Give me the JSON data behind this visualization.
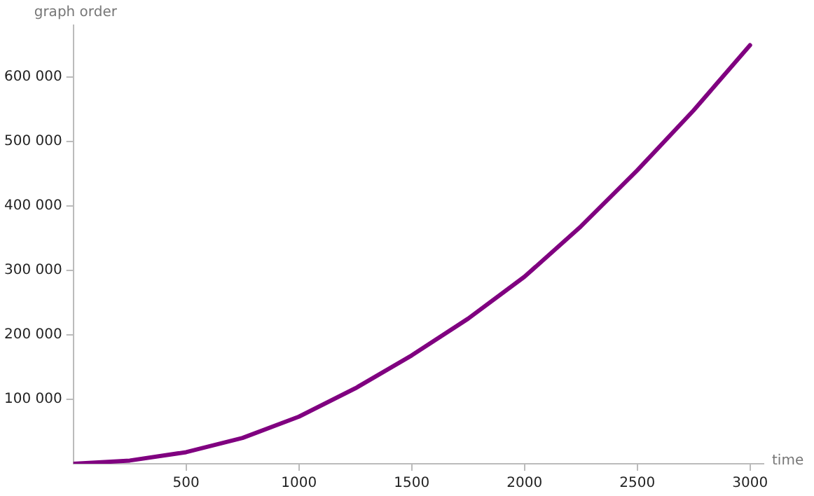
{
  "chart_data": {
    "type": "line",
    "xlabel": "time",
    "ylabel": "graph order",
    "x": [
      0,
      250,
      500,
      750,
      1000,
      1250,
      1500,
      1750,
      2000,
      2250,
      2500,
      2750,
      3000
    ],
    "series": [
      {
        "color": "#800080",
        "values": [
          0,
          5000,
          18000,
          40000,
          73000,
          117000,
          168000,
          225000,
          290000,
          368000,
          455000,
          548000,
          649000
        ]
      }
    ],
    "xlim": [
      0,
      3060
    ],
    "ylim": [
      0,
      680000
    ],
    "xticks": [
      500,
      1000,
      1500,
      2000,
      2500,
      3000
    ],
    "yticks": [
      {
        "value": 100000,
        "label": "100 000"
      },
      {
        "value": 200000,
        "label": "200 000"
      },
      {
        "value": 300000,
        "label": "300 000"
      },
      {
        "value": 400000,
        "label": "400 000"
      },
      {
        "value": 500000,
        "label": "500 000"
      },
      {
        "value": 600000,
        "label": "600 000"
      }
    ],
    "grid": false,
    "legend": false,
    "marker": "none",
    "line_style": "solid"
  }
}
